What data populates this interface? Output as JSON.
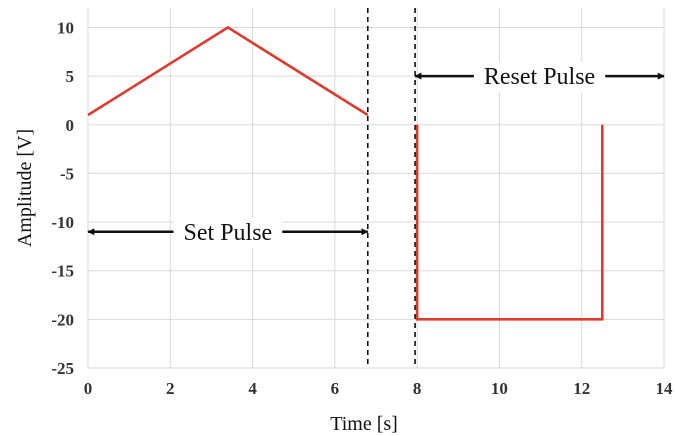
{
  "chart_data": {
    "type": "line",
    "xlabel": "Time [s]",
    "ylabel": "Amplitude [V]",
    "xlim": [
      0,
      14
    ],
    "ylim": [
      -25,
      12
    ],
    "xticks": [
      0,
      2,
      4,
      6,
      8,
      10,
      12,
      14
    ],
    "yticks": [
      -25,
      -20,
      -15,
      -10,
      -5,
      0,
      5,
      10
    ],
    "grid": true,
    "legend": "none",
    "color": "#e03a2f",
    "series": [
      {
        "x": [
          0,
          3.4,
          6.8
        ],
        "y": [
          1,
          10,
          1
        ]
      },
      {
        "x": [
          8,
          8,
          12.5,
          12.5
        ],
        "y": [
          0,
          -20,
          -20,
          0
        ]
      }
    ],
    "vlines": [
      6.8,
      7.95
    ],
    "annotations": [
      {
        "text": "Set Pulse",
        "x_from": 0,
        "x_to": 6.8,
        "y": -11
      },
      {
        "text": "Reset Pulse",
        "x_from": 7.95,
        "x_to": 14,
        "y": 5
      }
    ]
  }
}
